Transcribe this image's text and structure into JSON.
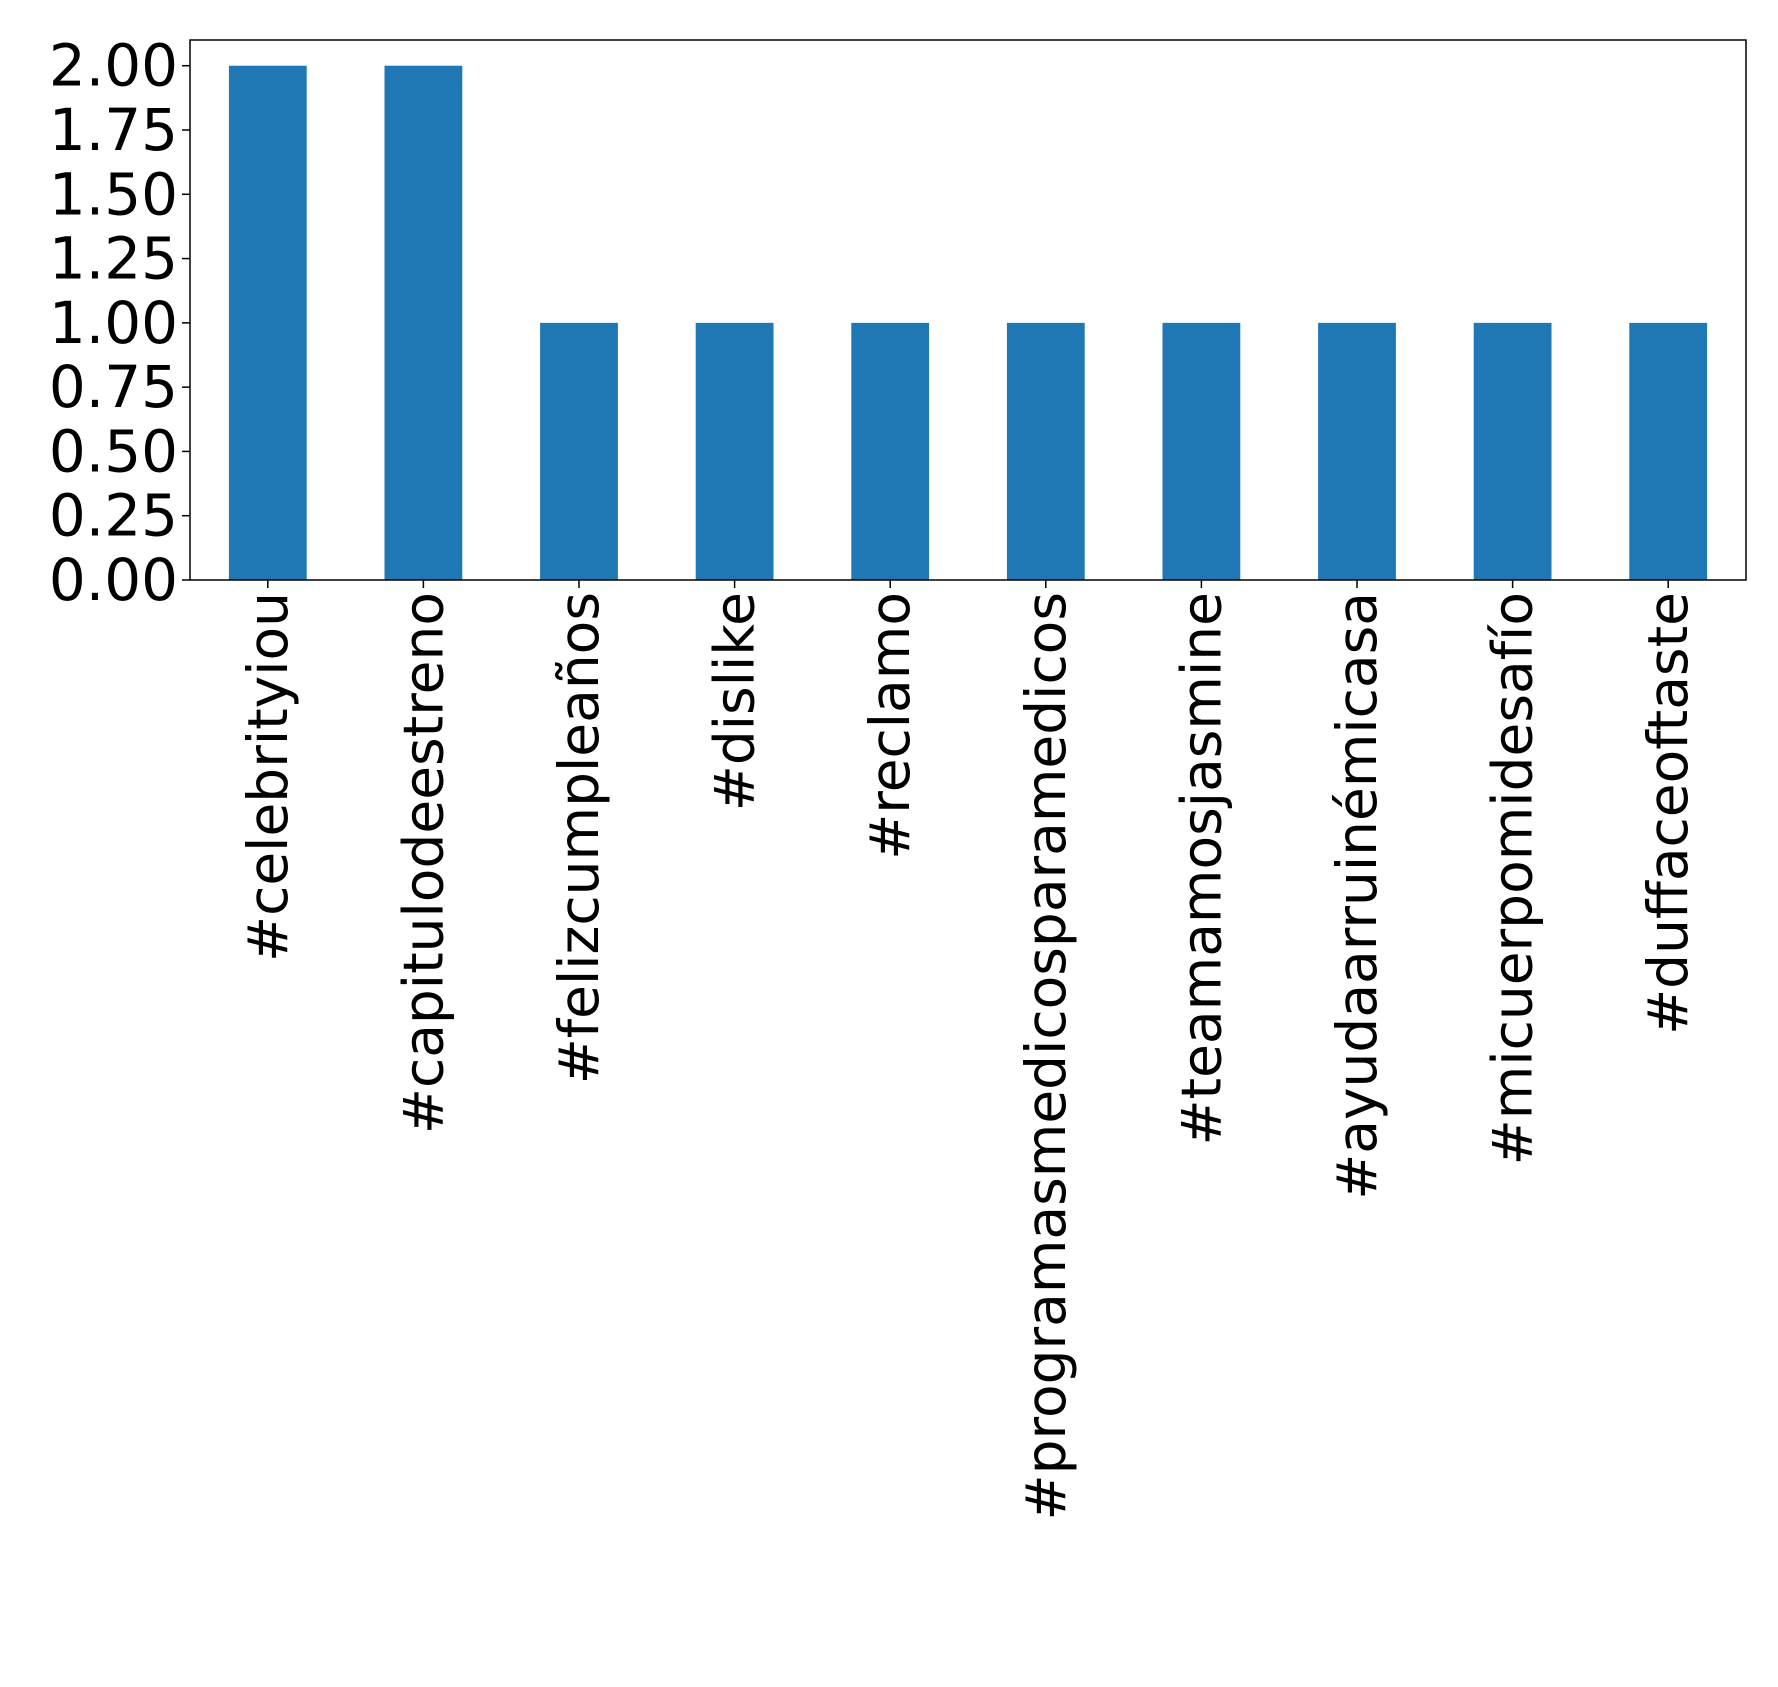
{
  "chart_data": {
    "type": "bar",
    "title": "",
    "xlabel": "",
    "ylabel": "",
    "categories": [
      "#celebrityiou",
      "#capitulodeestreno",
      "#felizcumpleaños",
      "#dislike",
      "#reclamo",
      "#programasmedicosparamedicos",
      "#teamamosjasmine",
      "#ayudaarruinémicasa",
      "#micuerpomidesafío",
      "#duffaceoftaste"
    ],
    "values": [
      2,
      2,
      1,
      1,
      1,
      1,
      1,
      1,
      1,
      1
    ],
    "ylim": [
      0,
      2.1
    ],
    "yticks": [
      "0.00",
      "0.25",
      "0.50",
      "0.75",
      "1.00",
      "1.25",
      "1.50",
      "1.75",
      "2.00"
    ],
    "bar_color": "#1f77b4",
    "grid": false,
    "legend": "none"
  }
}
